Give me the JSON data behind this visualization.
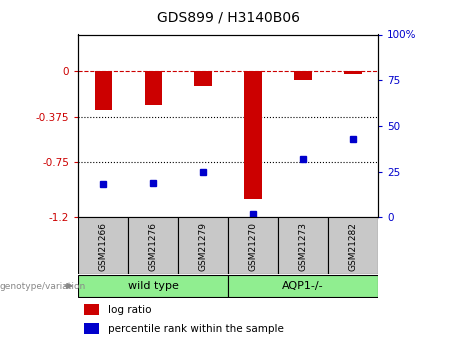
{
  "title": "GDS899 / H3140B06",
  "samples": [
    "GSM21266",
    "GSM21276",
    "GSM21279",
    "GSM21270",
    "GSM21273",
    "GSM21282"
  ],
  "log_ratio": [
    -0.32,
    -0.28,
    -0.12,
    -1.05,
    -0.07,
    -0.02
  ],
  "percentile_rank": [
    18,
    19,
    25,
    2,
    32,
    43
  ],
  "bar_color": "#cc0000",
  "dot_color": "#0000cc",
  "ylim_left": [
    -1.2,
    0.3
  ],
  "ylim_right": [
    0,
    100
  ],
  "yticks_left": [
    0,
    -0.375,
    -0.75,
    -1.2
  ],
  "ytick_labels_left": [
    "0",
    "-0.375",
    "-0.75",
    "-1.2"
  ],
  "yticks_right": [
    0,
    25,
    50,
    75,
    100
  ],
  "ytick_labels_right": [
    "0",
    "25",
    "50",
    "75",
    "100%"
  ],
  "hline_y": [
    0,
    -0.375,
    -0.75
  ],
  "hline_styles": [
    "--",
    ":",
    ":"
  ],
  "hline_colors": [
    "#cc0000",
    "black",
    "black"
  ],
  "group_labels": [
    "wild type",
    "AQP1-/-"
  ],
  "group_color": "#90EE90",
  "group_boundary": 2.5,
  "bar_width": 0.35,
  "genotype_label": "genotype/variation",
  "legend_label_ratio": "log ratio",
  "legend_label_pct": "percentile rank within the sample",
  "sample_box_color": "#c8c8c8",
  "title_fontsize": 10,
  "tick_fontsize": 7.5,
  "label_fontsize": 7.5,
  "group_fontsize": 8
}
